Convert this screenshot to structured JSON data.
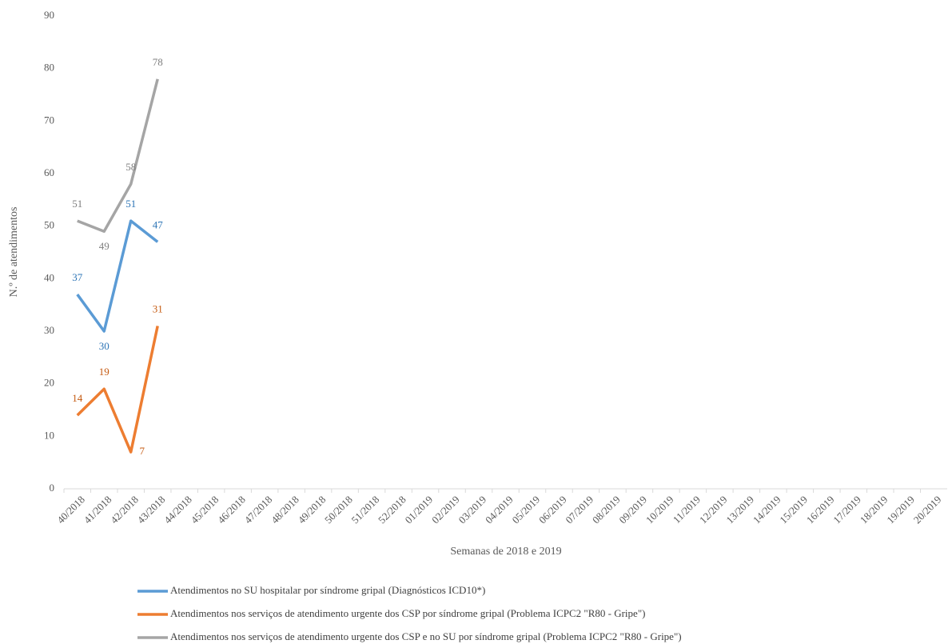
{
  "chart_data": {
    "type": "line",
    "y_label": "N.º de atendimentos",
    "x_label": "Semanas de 2018 e 2019",
    "categories": [
      "40/2018",
      "41/2018",
      "42/2018",
      "43/2018",
      "44/2018",
      "45/2018",
      "46/2018",
      "47/2018",
      "48/2018",
      "49/2018",
      "50/2018",
      "51/2018",
      "52/2018",
      "01/2019",
      "02/2019",
      "03/2019",
      "04/2019",
      "05/2019",
      "06/2019",
      "07/2019",
      "08/2019",
      "09/2019",
      "10/2019",
      "11/2019",
      "12/2019",
      "13/2019",
      "14/2019",
      "15/2019",
      "16/2019",
      "17/2019",
      "18/2019",
      "19/2019",
      "20/2019"
    ],
    "series": [
      {
        "name": "Atendimentos no SU hospitalar por síndrome gripal (Diagnósticos ICD10*)",
        "color": "#5b9bd5",
        "values": [
          37,
          30,
          51,
          47,
          null,
          null,
          null,
          null,
          null,
          null,
          null,
          null,
          null,
          null,
          null,
          null,
          null,
          null,
          null,
          null,
          null,
          null,
          null,
          null,
          null,
          null,
          null,
          null,
          null,
          null,
          null,
          null,
          null
        ]
      },
      {
        "name": "Atendimentos nos serviços de atendimento urgente dos CSP por síndrome gripal (Problema ICPC2  \"R80 - Gripe\")",
        "color": "#ed7d31",
        "values": [
          14,
          19,
          7,
          31,
          null,
          null,
          null,
          null,
          null,
          null,
          null,
          null,
          null,
          null,
          null,
          null,
          null,
          null,
          null,
          null,
          null,
          null,
          null,
          null,
          null,
          null,
          null,
          null,
          null,
          null,
          null,
          null,
          null
        ]
      },
      {
        "name": "Atendimentos nos serviços de atendimento urgente dos CSP e no SU por síndrome gripal (Problema ICPC2  \"R80 - Gripe\")",
        "color": "#a5a5a5",
        "values": [
          51,
          49,
          58,
          78,
          null,
          null,
          null,
          null,
          null,
          null,
          null,
          null,
          null,
          null,
          null,
          null,
          null,
          null,
          null,
          null,
          null,
          null,
          null,
          null,
          null,
          null,
          null,
          null,
          null,
          null,
          null,
          null,
          null
        ]
      }
    ],
    "ylim": [
      0,
      90
    ],
    "yticks": [
      0,
      10,
      20,
      30,
      40,
      50,
      60,
      70,
      80,
      90
    ],
    "grid": false
  }
}
